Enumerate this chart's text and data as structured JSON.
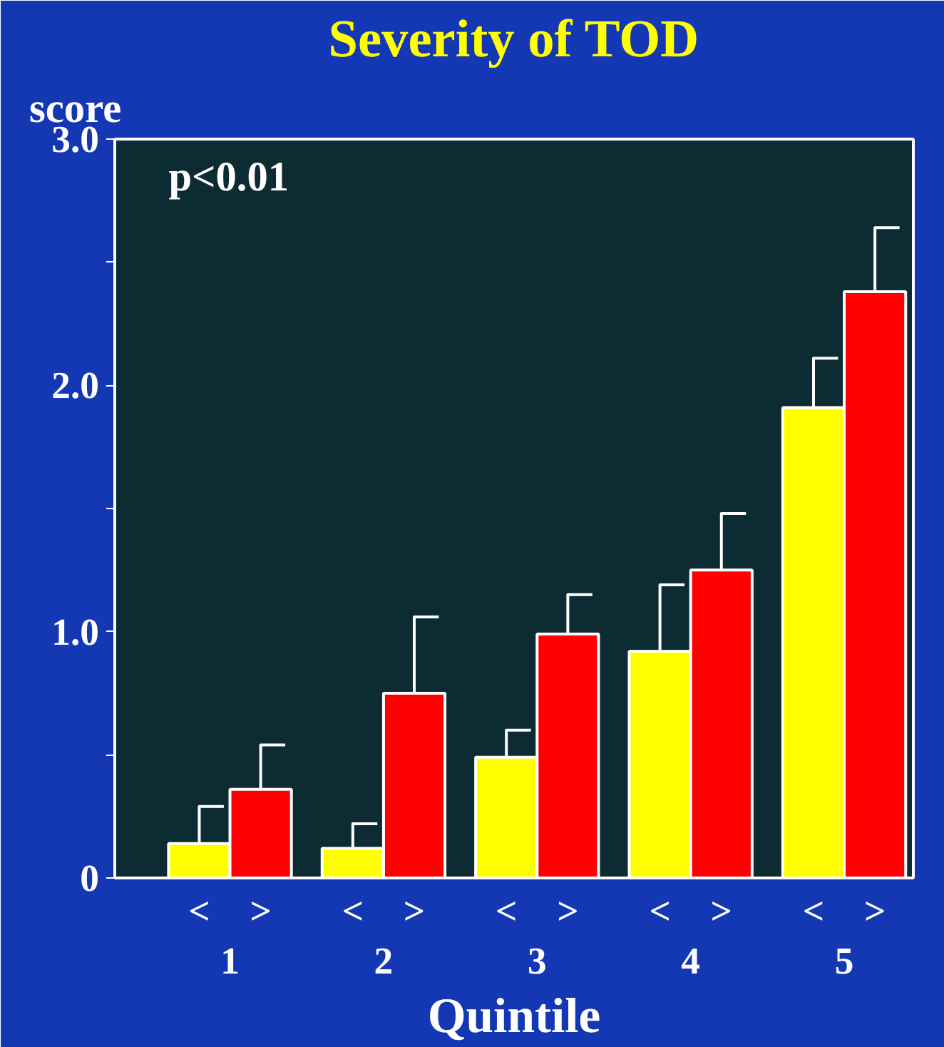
{
  "chart_data": {
    "type": "bar",
    "title": "Severity of TOD",
    "ylabel": "score",
    "xlabel": "Quintile",
    "categories": [
      "1",
      "2",
      "3",
      "4",
      "5"
    ],
    "series": [
      {
        "name": "<",
        "color": "#ffff00",
        "values": [
          0.14,
          0.12,
          0.49,
          0.92,
          1.91
        ],
        "errors": [
          [
            0.14,
            0.29
          ],
          [
            0.12,
            0.22
          ],
          [
            0.49,
            0.6
          ],
          [
            0.92,
            1.19
          ],
          [
            1.91,
            2.11
          ]
        ]
      },
      {
        "name": ">",
        "color": "#ff0000",
        "values": [
          0.36,
          0.75,
          0.99,
          1.25,
          2.38
        ],
        "errors": [
          [
            0.36,
            0.54
          ],
          [
            0.75,
            1.06
          ],
          [
            0.99,
            1.15
          ],
          [
            1.25,
            1.48
          ],
          [
            2.38,
            2.64
          ]
        ]
      }
    ],
    "ylim": [
      0,
      3.0
    ],
    "yticks": [
      {
        "value": 0,
        "label": "0"
      },
      {
        "value": 0.5,
        "label": null
      },
      {
        "value": 1.0,
        "label": "1.0"
      },
      {
        "value": 1.5,
        "label": null
      },
      {
        "value": 2.0,
        "label": "2.0"
      },
      {
        "value": 2.5,
        "label": null
      },
      {
        "value": 3.0,
        "label": "3.0"
      }
    ],
    "annotations": [
      "p<0.01"
    ],
    "grid": false,
    "legend": "bottom"
  }
}
